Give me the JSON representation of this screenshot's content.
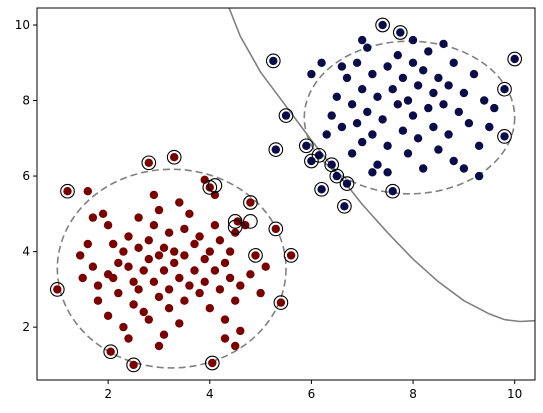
{
  "chart_data": {
    "type": "scatter",
    "title": "",
    "xlabel": "",
    "ylabel": "",
    "xlim": [
      0.6,
      10.4
    ],
    "ylim": [
      0.6,
      10.45
    ],
    "x_ticks": [
      2,
      4,
      6,
      8,
      10
    ],
    "y_ticks": [
      2,
      4,
      6,
      8,
      10
    ],
    "x_tick_labels": [
      "2",
      "4",
      "6",
      "8",
      "10"
    ],
    "y_tick_labels": [
      "2",
      "4",
      "6",
      "8",
      "10"
    ],
    "grid": false,
    "colors": {
      "class_a": "#7a0000",
      "class_b": "#0b0b4a",
      "boundary": "#808080",
      "support_ring": "#000000"
    },
    "series": [
      {
        "color": "#7a0000",
        "points": [
          [
            1.0,
            3.0
          ],
          [
            1.2,
            5.6
          ],
          [
            1.6,
            4.2
          ],
          [
            1.7,
            3.6
          ],
          [
            1.8,
            2.7
          ],
          [
            1.8,
            3.1
          ],
          [
            1.9,
            5.0
          ],
          [
            2.0,
            4.7
          ],
          [
            2.0,
            3.4
          ],
          [
            2.0,
            2.3
          ],
          [
            2.05,
            1.35
          ],
          [
            2.1,
            4.2
          ],
          [
            2.1,
            3.3
          ],
          [
            2.2,
            3.7
          ],
          [
            2.2,
            2.9
          ],
          [
            2.3,
            4.0
          ],
          [
            2.3,
            2.0
          ],
          [
            2.4,
            3.6
          ],
          [
            2.4,
            4.4
          ],
          [
            2.5,
            3.2
          ],
          [
            2.5,
            2.6
          ],
          [
            2.5,
            1.0
          ],
          [
            2.6,
            4.1
          ],
          [
            2.6,
            3.0
          ],
          [
            2.6,
            4.9
          ],
          [
            2.7,
            3.5
          ],
          [
            2.7,
            2.4
          ],
          [
            2.8,
            6.35
          ],
          [
            2.8,
            4.3
          ],
          [
            2.8,
            3.8
          ],
          [
            2.8,
            2.2
          ],
          [
            2.9,
            3.2
          ],
          [
            2.9,
            4.7
          ],
          [
            3.0,
            3.9
          ],
          [
            3.0,
            2.8
          ],
          [
            3.0,
            5.1
          ],
          [
            3.1,
            4.1
          ],
          [
            3.1,
            3.5
          ],
          [
            3.1,
            1.8
          ],
          [
            3.2,
            4.5
          ],
          [
            3.2,
            3.0
          ],
          [
            3.2,
            2.5
          ],
          [
            3.3,
            6.5
          ],
          [
            3.3,
            3.7
          ],
          [
            3.3,
            4.0
          ],
          [
            3.4,
            3.3
          ],
          [
            3.4,
            2.1
          ],
          [
            3.5,
            4.6
          ],
          [
            3.5,
            3.9
          ],
          [
            3.5,
            2.7
          ],
          [
            3.6,
            3.1
          ],
          [
            3.6,
            5.0
          ],
          [
            3.7,
            4.2
          ],
          [
            3.7,
            3.5
          ],
          [
            3.8,
            2.9
          ],
          [
            3.8,
            4.4
          ],
          [
            3.9,
            3.8
          ],
          [
            3.9,
            3.2
          ],
          [
            4.0,
            5.7
          ],
          [
            4.0,
            4.0
          ],
          [
            4.0,
            2.5
          ],
          [
            4.05,
            1.05
          ],
          [
            4.1,
            3.5
          ],
          [
            4.1,
            4.7
          ],
          [
            4.2,
            3.0
          ],
          [
            4.2,
            4.3
          ],
          [
            4.3,
            3.7
          ],
          [
            4.3,
            2.2
          ],
          [
            4.4,
            4.0
          ],
          [
            4.4,
            3.3
          ],
          [
            4.5,
            2.7
          ],
          [
            4.5,
            4.5
          ],
          [
            4.55,
            4.8
          ],
          [
            4.6,
            3.1
          ],
          [
            4.6,
            1.9
          ],
          [
            4.7,
            4.7
          ],
          [
            4.8,
            5.3
          ],
          [
            4.8,
            3.4
          ],
          [
            4.9,
            3.9
          ],
          [
            5.0,
            2.9
          ],
          [
            5.1,
            3.6
          ],
          [
            5.3,
            4.6
          ],
          [
            5.4,
            2.65
          ],
          [
            5.6,
            3.9
          ],
          [
            1.6,
            5.6
          ],
          [
            1.7,
            4.9
          ],
          [
            2.9,
            5.5
          ],
          [
            3.4,
            5.3
          ],
          [
            3.9,
            5.9
          ],
          [
            4.1,
            5.5
          ],
          [
            2.4,
            1.7
          ],
          [
            3.0,
            1.5
          ],
          [
            4.5,
            1.5
          ],
          [
            4.3,
            1.7
          ],
          [
            1.5,
            3.3
          ],
          [
            1.45,
            3.9
          ]
        ]
      },
      {
        "color": "#0b0b4a",
        "points": [
          [
            5.25,
            9.05
          ],
          [
            5.3,
            6.7
          ],
          [
            5.5,
            7.6
          ],
          [
            5.9,
            6.8
          ],
          [
            6.0,
            6.4
          ],
          [
            6.15,
            6.55
          ],
          [
            6.2,
            5.65
          ],
          [
            6.3,
            7.1
          ],
          [
            6.4,
            6.3
          ],
          [
            6.4,
            7.6
          ],
          [
            6.5,
            8.1
          ],
          [
            6.5,
            6.0
          ],
          [
            6.6,
            7.3
          ],
          [
            6.65,
            5.2
          ],
          [
            6.7,
            5.8
          ],
          [
            6.7,
            8.6
          ],
          [
            6.8,
            6.6
          ],
          [
            6.8,
            7.9
          ],
          [
            6.9,
            7.4
          ],
          [
            6.9,
            9.0
          ],
          [
            7.0,
            8.3
          ],
          [
            7.0,
            6.9
          ],
          [
            7.1,
            7.7
          ],
          [
            7.1,
            9.4
          ],
          [
            7.2,
            8.7
          ],
          [
            7.2,
            7.1
          ],
          [
            7.3,
            8.1
          ],
          [
            7.3,
            6.3
          ],
          [
            7.4,
            10.0
          ],
          [
            7.4,
            7.5
          ],
          [
            7.5,
            8.9
          ],
          [
            7.5,
            6.8
          ],
          [
            7.6,
            5.6
          ],
          [
            7.6,
            8.3
          ],
          [
            7.7,
            7.9
          ],
          [
            7.7,
            9.2
          ],
          [
            7.75,
            9.8
          ],
          [
            7.8,
            7.2
          ],
          [
            7.8,
            8.6
          ],
          [
            7.9,
            6.6
          ],
          [
            7.9,
            8.0
          ],
          [
            8.0,
            7.6
          ],
          [
            8.0,
            9.0
          ],
          [
            8.1,
            8.4
          ],
          [
            8.1,
            7.0
          ],
          [
            8.2,
            8.8
          ],
          [
            8.2,
            6.2
          ],
          [
            8.3,
            7.8
          ],
          [
            8.3,
            9.3
          ],
          [
            8.4,
            8.2
          ],
          [
            8.4,
            7.3
          ],
          [
            8.5,
            8.6
          ],
          [
            8.5,
            6.7
          ],
          [
            8.6,
            7.9
          ],
          [
            8.7,
            8.4
          ],
          [
            8.7,
            7.1
          ],
          [
            8.8,
            9.0
          ],
          [
            8.8,
            6.4
          ],
          [
            8.9,
            7.7
          ],
          [
            9.0,
            8.2
          ],
          [
            9.1,
            7.4
          ],
          [
            9.2,
            8.7
          ],
          [
            9.3,
            6.8
          ],
          [
            9.4,
            8.0
          ],
          [
            9.5,
            7.3
          ],
          [
            9.6,
            7.8
          ],
          [
            9.8,
            8.3
          ],
          [
            9.8,
            7.05
          ],
          [
            10.0,
            9.1
          ],
          [
            6.0,
            8.7
          ],
          [
            6.2,
            9.0
          ],
          [
            7.0,
            9.6
          ],
          [
            8.0,
            9.6
          ],
          [
            8.6,
            9.5
          ],
          [
            9.0,
            6.2
          ],
          [
            9.3,
            6.0
          ],
          [
            7.2,
            6.1
          ],
          [
            6.6,
            8.9
          ],
          [
            7.5,
            6.1
          ]
        ]
      }
    ],
    "support_vectors": [
      [
        1.0,
        3.0
      ],
      [
        1.2,
        5.6
      ],
      [
        2.05,
        1.35
      ],
      [
        2.5,
        1.0
      ],
      [
        2.8,
        6.35
      ],
      [
        3.3,
        6.5
      ],
      [
        4.0,
        5.7
      ],
      [
        4.05,
        1.05
      ],
      [
        4.5,
        4.8
      ],
      [
        4.5,
        4.65
      ],
      [
        4.8,
        4.8
      ],
      [
        4.8,
        5.3
      ],
      [
        4.9,
        3.9
      ],
      [
        5.3,
        4.6
      ],
      [
        5.4,
        2.65
      ],
      [
        5.6,
        3.9
      ],
      [
        4.1,
        5.75
      ],
      [
        5.25,
        9.05
      ],
      [
        5.3,
        6.7
      ],
      [
        5.5,
        7.6
      ],
      [
        5.9,
        6.8
      ],
      [
        6.0,
        6.4
      ],
      [
        6.15,
        6.55
      ],
      [
        6.2,
        5.65
      ],
      [
        6.4,
        6.3
      ],
      [
        6.5,
        6.0
      ],
      [
        6.65,
        5.2
      ],
      [
        6.7,
        5.8
      ],
      [
        7.4,
        10.0
      ],
      [
        7.6,
        5.6
      ],
      [
        7.75,
        9.8
      ],
      [
        9.8,
        8.3
      ],
      [
        9.8,
        7.05
      ],
      [
        10.0,
        9.1
      ]
    ],
    "boundaries": [
      {
        "style": "solid",
        "points": [
          [
            4.38,
            10.45
          ],
          [
            4.6,
            9.7
          ],
          [
            5.0,
            8.75
          ],
          [
            5.5,
            7.85
          ],
          [
            6.0,
            6.95
          ],
          [
            6.5,
            6.1
          ],
          [
            7.0,
            5.25
          ],
          [
            7.5,
            4.5
          ],
          [
            8.0,
            3.8
          ],
          [
            8.5,
            3.2
          ],
          [
            9.0,
            2.7
          ],
          [
            9.5,
            2.35
          ],
          [
            9.8,
            2.2
          ],
          [
            10.1,
            2.15
          ],
          [
            10.4,
            2.17
          ]
        ]
      },
      {
        "style": "dashed",
        "center": [
          3.25,
          3.55
        ],
        "radius": [
          2.25,
          2.63
        ]
      },
      {
        "style": "dashed",
        "center": [
          7.93,
          7.55
        ],
        "radius": [
          2.07,
          2.02
        ]
      }
    ]
  }
}
